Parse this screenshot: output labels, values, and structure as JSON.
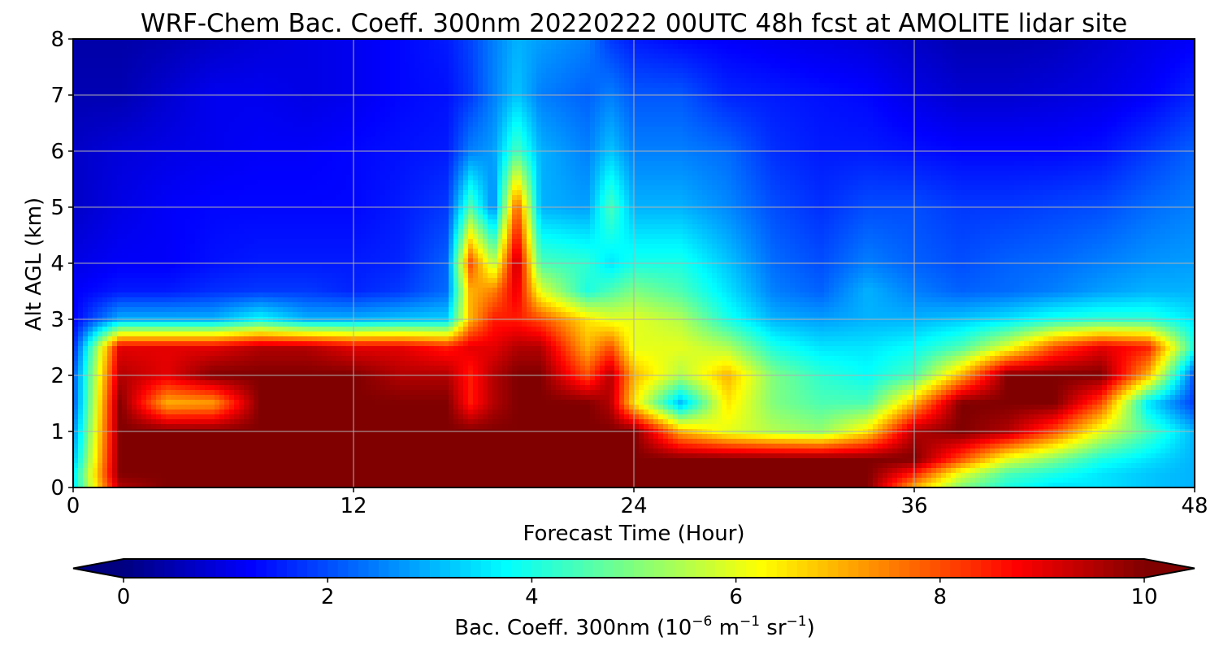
{
  "chart_data": {
    "type": "heatmap",
    "title": "WRF-Chem Bac. Coeff. 300nm  20220222 00UTC 48h fcst at AMOLITE lidar site",
    "xlabel": "Forecast Time (Hour)",
    "ylabel": "Alt AGL (km)",
    "xlim": [
      0,
      48
    ],
    "ylim": [
      0,
      8
    ],
    "xticks": [
      "0",
      "12",
      "24",
      "36",
      "48"
    ],
    "yticks": [
      "0",
      "1",
      "2",
      "3",
      "4",
      "5",
      "6",
      "7",
      "8"
    ],
    "grid": true,
    "colorbar": {
      "orientation": "horizontal",
      "position": "bottom",
      "extend": "both",
      "range": [
        0,
        10
      ],
      "ticks": [
        "0",
        "2",
        "4",
        "6",
        "8",
        "10"
      ],
      "label_main": "Bac. Coeff. 300nm  (10",
      "label_exp1": "−6",
      "label_mid": " m",
      "label_exp2": "−1",
      "label_mid2": " sr",
      "label_exp3": "−1",
      "label_end": ")",
      "colormap": "jet"
    },
    "x": [
      0,
      2,
      4,
      6,
      8,
      10,
      12,
      14,
      16,
      17,
      18,
      19,
      20,
      22,
      23,
      24,
      26,
      28,
      30,
      32,
      34,
      36,
      38,
      40,
      42,
      44,
      46,
      48
    ],
    "y": [
      0,
      0.25,
      0.5,
      1,
      1.5,
      2,
      2.5,
      3,
      3.5,
      4,
      5,
      6,
      7,
      8
    ],
    "z": [
      [
        3.5,
        9.5,
        10,
        10,
        10,
        10,
        10,
        10,
        10,
        10,
        10,
        10,
        10,
        10,
        10,
        10,
        10,
        10,
        10,
        10,
        10,
        7,
        5,
        4,
        3.5,
        3.5,
        3.2,
        3
      ],
      [
        3.5,
        10,
        10,
        10,
        10,
        10,
        10,
        10,
        10,
        10,
        10,
        10,
        10,
        10,
        10,
        10,
        10,
        10,
        10,
        10,
        10,
        8.5,
        6,
        4.5,
        4,
        3.5,
        3.2,
        3
      ],
      [
        3,
        10,
        10,
        10,
        10,
        10,
        10,
        10,
        10,
        10,
        10,
        10,
        10,
        10,
        10,
        10,
        10,
        10,
        10,
        10,
        10,
        10,
        8,
        6,
        5,
        4,
        3.5,
        3
      ],
      [
        2.5,
        10,
        10,
        10,
        10,
        10,
        10,
        10,
        10,
        10,
        10,
        10,
        10,
        10,
        10,
        10,
        7,
        6,
        5.5,
        5.2,
        6.5,
        9.5,
        10,
        9.5,
        8,
        6,
        4.5,
        3
      ],
      [
        2,
        10,
        7,
        7.2,
        10,
        10,
        10,
        10,
        10,
        8.5,
        9.5,
        10,
        10,
        10,
        9.5,
        6.5,
        3,
        6.5,
        5,
        4.5,
        4.5,
        7,
        10,
        10,
        10,
        8,
        3.5,
        1.8
      ],
      [
        2,
        9.5,
        9,
        10,
        10,
        10,
        10,
        9.5,
        9.5,
        8.5,
        9.5,
        10,
        10,
        8,
        9.5,
        7,
        5.5,
        7,
        5,
        4.2,
        3.8,
        4.5,
        7,
        10,
        10,
        10,
        7,
        2
      ],
      [
        1.5,
        9,
        9,
        9,
        9.5,
        9.5,
        9,
        9,
        8.5,
        9,
        9,
        9.5,
        9.5,
        7,
        8,
        6,
        6,
        5.5,
        4,
        3.5,
        3.5,
        3.8,
        4.5,
        6,
        8,
        9,
        8.5,
        4
      ],
      [
        1.2,
        3,
        3,
        3,
        3.8,
        3,
        3,
        3.2,
        3.3,
        7,
        8.5,
        8.5,
        8,
        6.5,
        6,
        6,
        5.5,
        4,
        3,
        2.8,
        3,
        3,
        3.2,
        3.5,
        4,
        4.2,
        4.2,
        3.5
      ],
      [
        1.2,
        1.5,
        1.5,
        1.7,
        1.8,
        1.8,
        1.6,
        1.8,
        2.3,
        7,
        7.5,
        9,
        6,
        4,
        4.5,
        5,
        4.5,
        3.5,
        2.5,
        2.2,
        3,
        2.5,
        2.2,
        2.3,
        2.5,
        2.8,
        3,
        3
      ],
      [
        1,
        1.2,
        1.2,
        1.4,
        1.5,
        1.5,
        1.5,
        1.6,
        2.2,
        8,
        5.5,
        9.5,
        4.5,
        4.2,
        3.5,
        4,
        4,
        3.2,
        2.3,
        2,
        2.5,
        2.2,
        2,
        2.2,
        2.3,
        2.5,
        2.7,
        2.8
      ],
      [
        0.7,
        1,
        1.2,
        1.3,
        1.3,
        1.3,
        1.3,
        1.5,
        1.8,
        4.5,
        2.5,
        8,
        3,
        2.8,
        4.5,
        3,
        3,
        2.6,
        2,
        1.7,
        2,
        2,
        1.8,
        1.8,
        1.9,
        2,
        2.3,
        2.5
      ],
      [
        0.7,
        0.9,
        1,
        1.1,
        1.2,
        1.2,
        1.3,
        1.4,
        1.5,
        2.5,
        2.8,
        4.5,
        3,
        2.5,
        3.2,
        2.5,
        2.5,
        2.3,
        1.7,
        1.5,
        1.5,
        1.4,
        1.3,
        1.3,
        1.3,
        1.4,
        1.8,
        2.2
      ],
      [
        0.5,
        0.5,
        0.8,
        1.1,
        1.1,
        1,
        1.1,
        1.3,
        1.4,
        1.8,
        2.5,
        3.2,
        2.5,
        2.2,
        2.5,
        2.1,
        2.1,
        1.6,
        1.5,
        1.4,
        1.3,
        1,
        0.8,
        0.8,
        0.9,
        1,
        1.2,
        1.6
      ],
      [
        0.4,
        0.4,
        0.5,
        0.7,
        0.9,
        1,
        1.1,
        1.3,
        1.5,
        1.9,
        2.5,
        3,
        2.8,
        2.5,
        1.8,
        1.5,
        1.3,
        1.2,
        1.1,
        1,
        0.9,
        0.7,
        0.5,
        0.5,
        0.6,
        0.8,
        1,
        1.2
      ]
    ]
  }
}
